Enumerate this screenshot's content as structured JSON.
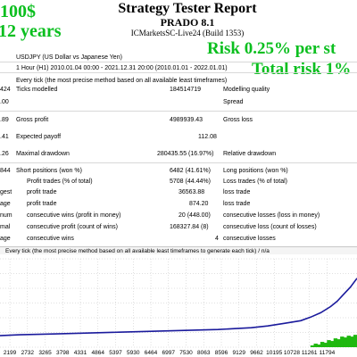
{
  "report": {
    "title": "Strategy Tester Report",
    "expert": "PRADO 8.1",
    "server": "ICMarketsSC-Live24 (Build 1353)"
  },
  "overlays": {
    "deposit": "100$",
    "years": "12 years",
    "risk_per_trade": "Risk 0.25% per st",
    "total_risk": "Total risk 1%"
  },
  "rows": {
    "symbol": "USDJPY (US Dollar vs Japanese Yen)",
    "period": "1 Hour (H1) 2010.01.04 00:00 - 2021.12.31 20:00 (2010.01.01 - 2022.01.01)",
    "model": "Every tick (the most precise method based on all available least timeframes)",
    "bars_fragment": "424",
    "ticks_label": "Ticks modelled",
    "ticks_value": "184514719",
    "quality_label": "Modelling quality",
    "initial_fragment": ".00",
    "spread_label": "Spread",
    "gross_profit_fragment": ".89",
    "gross_profit_label": "Gross profit",
    "gross_profit_value": "4989939.43",
    "gross_loss_label": "Gross loss",
    "profit_factor_fragment": ".41",
    "expected_payoff_label": "Expected payoff",
    "expected_payoff_value": "112.08",
    "abs_dd_fragment": ".26",
    "max_dd_label": "Maximal drawdown",
    "max_dd_value": "280435.55 (16.97%)",
    "rel_dd_label": "Relative drawdown",
    "total_trades_fragment": "844",
    "short_label": "Short positions (won %)",
    "short_value": "6482 (41.61%)",
    "long_label": "Long positions (won %)",
    "ptrades_label": "Profit trades (% of total)",
    "ptrades_value": "5708 (44.44%)",
    "ltrades_label": "Loss trades (% of total)",
    "largest_fragment": "gest",
    "largest_profit_label": "profit trade",
    "largest_profit_value": "36563.88",
    "largest_loss_label": "loss trade",
    "average_fragment": "age",
    "average_profit_label": "profit trade",
    "average_profit_value": "874.20",
    "average_loss_label": "loss trade",
    "maximum_fragment": "num",
    "max_wins_label": "consecutive wins (profit in money)",
    "max_wins_value": "20 (448.00)",
    "max_losses_label": "consecutive losses (loss in money)",
    "maximal_fragment": "mal",
    "maximal_profit_label": "consecutive profit (count of wins)",
    "maximal_profit_value": "168327.84 (8)",
    "maximal_loss_label": "consecutive loss (count of losses)",
    "avg_fragment": "age",
    "avg_wins_label": "consecutive wins",
    "avg_wins_value": "4",
    "avg_losses_label": "consecutive losses"
  },
  "chart_header": "Every tick (the most precise method based on all available least timeframes to generate each tick) / n/a",
  "chart_data": {
    "type": "line",
    "title": "",
    "xlabel": "",
    "ylabel": "",
    "x_ticks": [
      "2199",
      "2732",
      "3265",
      "3798",
      "4331",
      "4864",
      "5397",
      "5930",
      "6464",
      "6997",
      "7530",
      "8063",
      "8596",
      "9129",
      "9662",
      "10195",
      "10728",
      "11261",
      "11794"
    ],
    "xlim": [
      1900,
      12700
    ],
    "ylim": [
      0,
      1
    ],
    "series": [
      {
        "color": "#1a1a9c",
        "x": [
          1900,
          2500,
          3500,
          4500,
          5500,
          6500,
          7500,
          8500,
          9000,
          9500,
          10000,
          10500,
          11000,
          11300,
          11600,
          11900,
          12100,
          12300,
          12500,
          12700
        ],
        "y": [
          0.13,
          0.14,
          0.15,
          0.16,
          0.17,
          0.18,
          0.19,
          0.2,
          0.21,
          0.22,
          0.24,
          0.27,
          0.3,
          0.34,
          0.39,
          0.46,
          0.52,
          0.6,
          0.68,
          0.78
        ]
      }
    ],
    "volume_bars": {
      "color": "#1fb80f",
      "x": [
        11350,
        11450,
        11550,
        11650,
        11750,
        11850,
        11950,
        12050,
        12150,
        12250,
        12350,
        12450,
        12550,
        12650
      ],
      "y": [
        0.02,
        0.04,
        0.03,
        0.06,
        0.05,
        0.08,
        0.07,
        0.1,
        0.09,
        0.12,
        0.11,
        0.13,
        0.12,
        0.14
      ]
    }
  }
}
